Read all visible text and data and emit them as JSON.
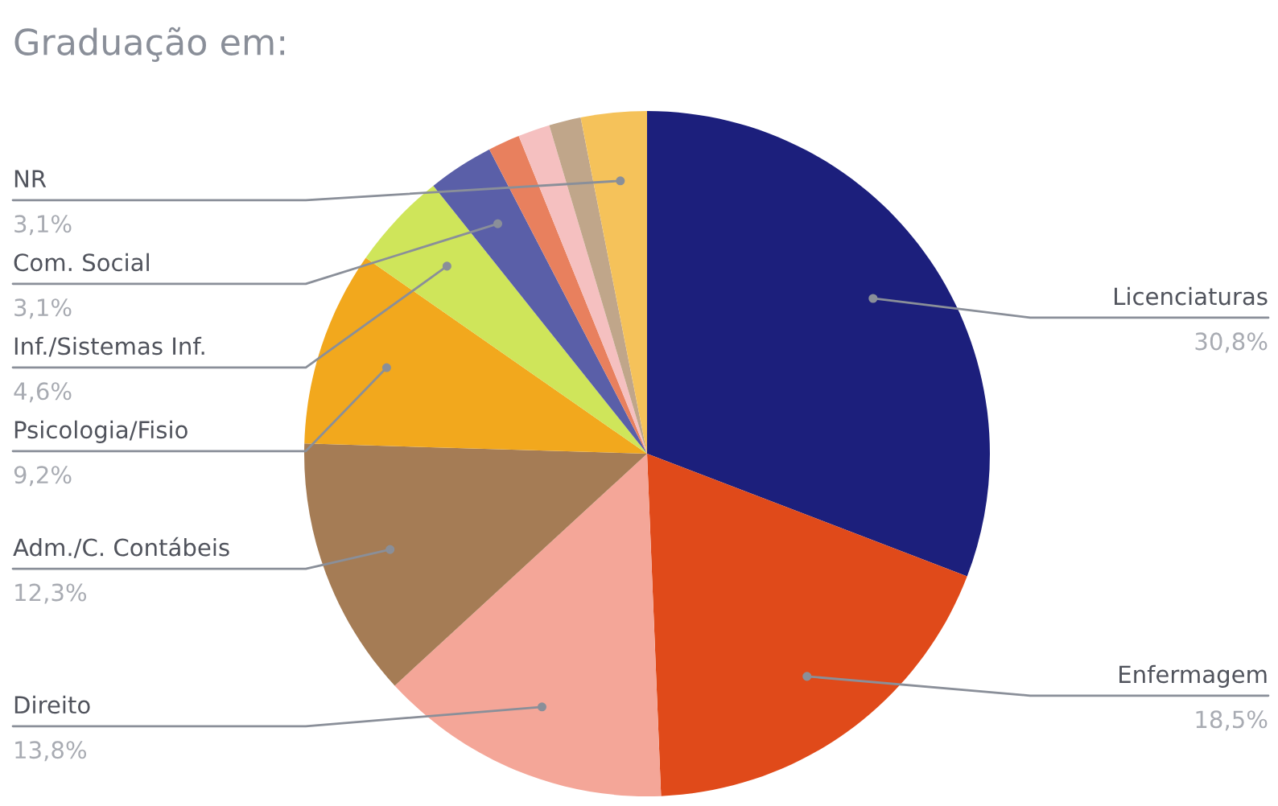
{
  "chart_data": {
    "type": "pie",
    "title": "Graduação em:",
    "categories": [
      "Licenciaturas",
      "Enfermagem",
      "Direito",
      "Adm./C. Contábeis",
      "Psicologia/Fisio",
      "Inf./Sistemas Inf.",
      "Com. Social",
      null,
      null,
      null,
      "NR"
    ],
    "values": [
      30.8,
      18.5,
      13.8,
      12.3,
      9.2,
      4.6,
      3.1,
      1.5,
      1.5,
      1.5,
      3.1
    ],
    "value_labels": [
      "30,8%",
      "18,5%",
      "13,8%",
      "12,3%",
      "9,2%",
      "4,6%",
      "3,1%",
      null,
      null,
      null,
      "3,1%"
    ],
    "colors": [
      "#1c1f7c",
      "#e04a1a",
      "#f4a698",
      "#a57c55",
      "#f2a81d",
      "#cfe55a",
      "#5a5fa8",
      "#e8805e",
      "#f5c0c0",
      "#c0a68a",
      "#f5c25a"
    ],
    "legend": false
  }
}
